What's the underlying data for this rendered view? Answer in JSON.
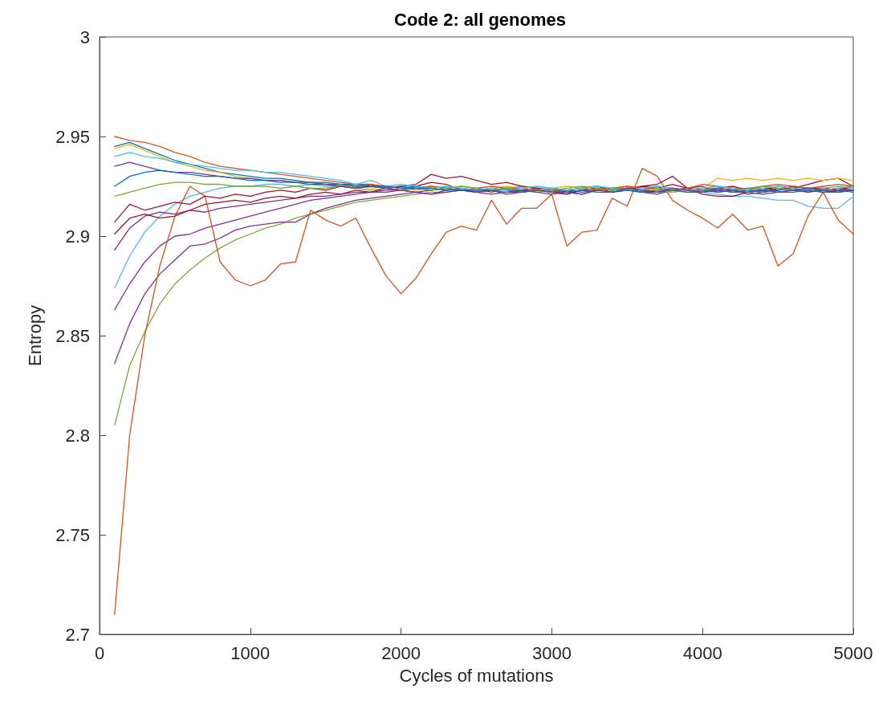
{
  "chart_data": {
    "type": "line",
    "title": "Code 2: all genomes",
    "xlabel": "Cycles of mutations",
    "ylabel": "Entropy",
    "xlim": [
      0,
      5000
    ],
    "xticks": [
      0,
      1000,
      2000,
      3000,
      4000,
      5000
    ],
    "ylim": [
      2.7,
      3
    ],
    "yticks": [
      2.7,
      2.75,
      2.8,
      2.85,
      2.9,
      2.95,
      3
    ],
    "grid": false,
    "marker": "none",
    "line_style": "solid",
    "x": [
      100,
      200,
      300,
      400,
      500,
      600,
      700,
      800,
      900,
      1000,
      1100,
      1200,
      1300,
      1400,
      1500,
      1600,
      1700,
      1800,
      1900,
      2000,
      2100,
      2200,
      2300,
      2400,
      2500,
      2600,
      2700,
      2800,
      2900,
      3000,
      3100,
      3200,
      3300,
      3400,
      3500,
      3600,
      3700,
      3800,
      3900,
      4000,
      4100,
      4200,
      4300,
      4400,
      4500,
      4600,
      4700,
      4800,
      4900,
      5000
    ],
    "series": [
      {
        "color": "#77ac30",
        "values": [
          2.805,
          2.835,
          2.852,
          2.866,
          2.876,
          2.883,
          2.889,
          2.894,
          2.898,
          2.901,
          2.904,
          2.906,
          2.909,
          2.911,
          2.913,
          2.915,
          2.917,
          2.918,
          2.919,
          2.92,
          2.921,
          2.922,
          2.922,
          2.923,
          2.923,
          2.923,
          2.924,
          2.923,
          2.924,
          2.924,
          2.923,
          2.924,
          2.923,
          2.924,
          2.924,
          2.923,
          2.924,
          2.923,
          2.923,
          2.924,
          2.924,
          2.923,
          2.924,
          2.923,
          2.924,
          2.923,
          2.924,
          2.924,
          2.923,
          2.924
        ]
      },
      {
        "color": "#7e2f8e",
        "values": [
          2.836,
          2.856,
          2.871,
          2.881,
          2.888,
          2.895,
          2.896,
          2.899,
          2.903,
          2.905,
          2.906,
          2.907,
          2.907,
          2.911,
          2.914,
          2.916,
          2.918,
          2.919,
          2.92,
          2.921,
          2.922,
          2.921,
          2.923,
          2.924,
          2.922,
          2.923,
          2.921,
          2.922,
          2.923,
          2.924,
          2.922,
          2.921,
          2.923,
          2.924,
          2.923,
          2.922,
          2.921,
          2.923,
          2.924,
          2.925,
          2.922,
          2.923,
          2.921,
          2.922,
          2.924,
          2.923,
          2.922,
          2.924,
          2.923,
          2.923
        ]
      },
      {
        "color": "#7e2f8e",
        "values": [
          2.863,
          2.876,
          2.887,
          2.895,
          2.9,
          2.901,
          2.904,
          2.906,
          2.908,
          2.91,
          2.912,
          2.914,
          2.916,
          2.918,
          2.919,
          2.92,
          2.921,
          2.922,
          2.922,
          2.923,
          2.922,
          2.923,
          2.924,
          2.923,
          2.922,
          2.923,
          2.924,
          2.922,
          2.923,
          2.922,
          2.921,
          2.923,
          2.924,
          2.923,
          2.924,
          2.922,
          2.923,
          2.924,
          2.923,
          2.922,
          2.923,
          2.924,
          2.923,
          2.922,
          2.923,
          2.924,
          2.922,
          2.923,
          2.924,
          2.923
        ]
      },
      {
        "color": "#4dbeee",
        "values": [
          2.874,
          2.89,
          2.902,
          2.91,
          2.916,
          2.92,
          2.922,
          2.924,
          2.925,
          2.925,
          2.926,
          2.926,
          2.925,
          2.926,
          2.925,
          2.925,
          2.926,
          2.925,
          2.924,
          2.925,
          2.924,
          2.925,
          2.924,
          2.925,
          2.924,
          2.923,
          2.924,
          2.925,
          2.924,
          2.924,
          2.923,
          2.924,
          2.925,
          2.924,
          2.923,
          2.924,
          2.925,
          2.924,
          2.923,
          2.922,
          2.921,
          2.92,
          2.92,
          2.919,
          2.918,
          2.918,
          2.915,
          2.914,
          2.914,
          2.92
        ]
      },
      {
        "color": "#d95319",
        "values": [
          2.71,
          2.8,
          2.85,
          2.885,
          2.91,
          2.925,
          2.92,
          2.887,
          2.878,
          2.875,
          2.878,
          2.886,
          2.887,
          2.913,
          2.908,
          2.905,
          2.909,
          2.894,
          2.88,
          2.871,
          2.879,
          2.891,
          2.902,
          2.905,
          2.903,
          2.918,
          2.906,
          2.914,
          2.914,
          2.921,
          2.895,
          2.902,
          2.903,
          2.919,
          2.915,
          2.934,
          2.93,
          2.918,
          2.913,
          2.909,
          2.904,
          2.911,
          2.903,
          2.905,
          2.885,
          2.891,
          2.91,
          2.922,
          2.908,
          2.901
        ]
      },
      {
        "color": "#7e2f8e",
        "values": [
          2.893,
          2.904,
          2.91,
          2.912,
          2.911,
          2.913,
          2.912,
          2.914,
          2.915,
          2.916,
          2.917,
          2.918,
          2.919,
          2.92,
          2.92,
          2.921,
          2.922,
          2.922,
          2.923,
          2.923,
          2.924,
          2.923,
          2.924,
          2.923,
          2.922,
          2.923,
          2.924,
          2.923,
          2.924,
          2.923,
          2.922,
          2.923,
          2.924,
          2.923,
          2.924,
          2.923,
          2.922,
          2.923,
          2.924,
          2.923,
          2.922,
          2.923,
          2.924,
          2.923,
          2.922,
          2.923,
          2.924,
          2.923,
          2.922,
          2.923
        ]
      },
      {
        "color": "#a2142f",
        "values": [
          2.901,
          2.909,
          2.911,
          2.909,
          2.91,
          2.913,
          2.916,
          2.917,
          2.918,
          2.917,
          2.919,
          2.92,
          2.919,
          2.921,
          2.922,
          2.921,
          2.923,
          2.922,
          2.924,
          2.923,
          2.925,
          2.927,
          2.926,
          2.923,
          2.924,
          2.922,
          2.924,
          2.923,
          2.924,
          2.922,
          2.923,
          2.924,
          2.925,
          2.923,
          2.924,
          2.925,
          2.924,
          2.926,
          2.924,
          2.923,
          2.924,
          2.925,
          2.923,
          2.924,
          2.923,
          2.925,
          2.924,
          2.924,
          2.923,
          2.925
        ]
      },
      {
        "color": "#a2142f",
        "values": [
          2.907,
          2.916,
          2.913,
          2.915,
          2.917,
          2.916,
          2.92,
          2.919,
          2.921,
          2.92,
          2.922,
          2.923,
          2.922,
          2.924,
          2.923,
          2.925,
          2.924,
          2.926,
          2.924,
          2.925,
          2.926,
          2.931,
          2.929,
          2.93,
          2.928,
          2.926,
          2.927,
          2.925,
          2.924,
          2.922,
          2.921,
          2.923,
          2.924,
          2.922,
          2.923,
          2.925,
          2.926,
          2.93,
          2.924,
          2.921,
          2.92,
          2.92,
          2.922,
          2.923,
          2.925,
          2.924,
          2.926,
          2.928,
          2.929,
          2.925
        ]
      },
      {
        "color": "#0072bd",
        "values": [
          2.945,
          2.947,
          2.944,
          2.941,
          2.938,
          2.936,
          2.934,
          2.932,
          2.931,
          2.93,
          2.929,
          2.929,
          2.928,
          2.927,
          2.927,
          2.926,
          2.926,
          2.925,
          2.925,
          2.924,
          2.925,
          2.924,
          2.923,
          2.924,
          2.923,
          2.924,
          2.923,
          2.922,
          2.923,
          2.924,
          2.923,
          2.922,
          2.923,
          2.924,
          2.923,
          2.922,
          2.923,
          2.922,
          2.923,
          2.924,
          2.923,
          2.922,
          2.923,
          2.922,
          2.923,
          2.924,
          2.923,
          2.922,
          2.923,
          2.922
        ]
      },
      {
        "color": "#edb120",
        "values": [
          2.944,
          2.946,
          2.943,
          2.94,
          2.937,
          2.935,
          2.933,
          2.932,
          2.93,
          2.929,
          2.928,
          2.928,
          2.927,
          2.927,
          2.926,
          2.925,
          2.925,
          2.924,
          2.925,
          2.924,
          2.923,
          2.924,
          2.925,
          2.924,
          2.923,
          2.924,
          2.925,
          2.924,
          2.923,
          2.924,
          2.925,
          2.924,
          2.923,
          2.924,
          2.925,
          2.924,
          2.923,
          2.922,
          2.923,
          2.924,
          2.929,
          2.928,
          2.929,
          2.928,
          2.929,
          2.928,
          2.929,
          2.928,
          2.929,
          2.928
        ]
      },
      {
        "color": "#d95319",
        "values": [
          2.95,
          2.948,
          2.947,
          2.945,
          2.942,
          2.94,
          2.937,
          2.935,
          2.934,
          2.933,
          2.932,
          2.931,
          2.93,
          2.929,
          2.928,
          2.927,
          2.926,
          2.926,
          2.925,
          2.924,
          2.924,
          2.925,
          2.924,
          2.923,
          2.924,
          2.925,
          2.924,
          2.924,
          2.923,
          2.922,
          2.923,
          2.924,
          2.923,
          2.924,
          2.925,
          2.924,
          2.924,
          2.923,
          2.924,
          2.926,
          2.925,
          2.924,
          2.923,
          2.925,
          2.926,
          2.925,
          2.924,
          2.925,
          2.926,
          2.925
        ]
      },
      {
        "color": "#4dbeee",
        "values": [
          2.94,
          2.942,
          2.94,
          2.939,
          2.937,
          2.936,
          2.935,
          2.934,
          2.933,
          2.933,
          2.932,
          2.932,
          2.931,
          2.93,
          2.929,
          2.928,
          2.926,
          2.928,
          2.925,
          2.926,
          2.925,
          2.924,
          2.925,
          2.924,
          2.923,
          2.924,
          2.923,
          2.924,
          2.925,
          2.924,
          2.923,
          2.924,
          2.925,
          2.924,
          2.923,
          2.924,
          2.925,
          2.924,
          2.923,
          2.924,
          2.925,
          2.924,
          2.923,
          2.924,
          2.925,
          2.924,
          2.923,
          2.924,
          2.925,
          2.924
        ]
      },
      {
        "color": "#77ac30",
        "values": [
          2.92,
          2.922,
          2.924,
          2.926,
          2.927,
          2.927,
          2.926,
          2.926,
          2.925,
          2.925,
          2.925,
          2.924,
          2.925,
          2.924,
          2.924,
          2.925,
          2.924,
          2.923,
          2.924,
          2.923,
          2.924,
          2.923,
          2.924,
          2.925,
          2.924,
          2.923,
          2.924,
          2.923,
          2.922,
          2.923,
          2.924,
          2.925,
          2.924,
          2.923,
          2.924,
          2.923,
          2.924,
          2.923,
          2.922,
          2.923,
          2.924,
          2.923,
          2.924,
          2.925,
          2.924,
          2.923,
          2.924,
          2.923,
          2.924,
          2.925
        ]
      },
      {
        "color": "#7e2f8e",
        "values": [
          2.935,
          2.937,
          2.935,
          2.933,
          2.932,
          2.932,
          2.931,
          2.93,
          2.929,
          2.929,
          2.928,
          2.928,
          2.927,
          2.927,
          2.926,
          2.925,
          2.924,
          2.925,
          2.924,
          2.923,
          2.922,
          2.921,
          2.922,
          2.923,
          2.922,
          2.921,
          2.922,
          2.923,
          2.922,
          2.921,
          2.922,
          2.921,
          2.923,
          2.922,
          2.924,
          2.923,
          2.922,
          2.924,
          2.923,
          2.922,
          2.924,
          2.923,
          2.922,
          2.921,
          2.922,
          2.923,
          2.924,
          2.923,
          2.922,
          2.923
        ]
      },
      {
        "color": "#0072bd",
        "values": [
          2.925,
          2.93,
          2.932,
          2.933,
          2.932,
          2.931,
          2.93,
          2.93,
          2.929,
          2.928,
          2.928,
          2.927,
          2.927,
          2.926,
          2.926,
          2.926,
          2.925,
          2.925,
          2.925,
          2.924,
          2.924,
          2.924,
          2.923,
          2.923,
          2.923,
          2.923,
          2.922,
          2.922,
          2.923,
          2.922,
          2.922,
          2.923,
          2.922,
          2.922,
          2.923,
          2.922,
          2.922,
          2.923,
          2.922,
          2.922,
          2.923,
          2.922,
          2.922,
          2.923,
          2.922,
          2.922,
          2.923,
          2.922,
          2.922,
          2.923
        ]
      }
    ]
  }
}
